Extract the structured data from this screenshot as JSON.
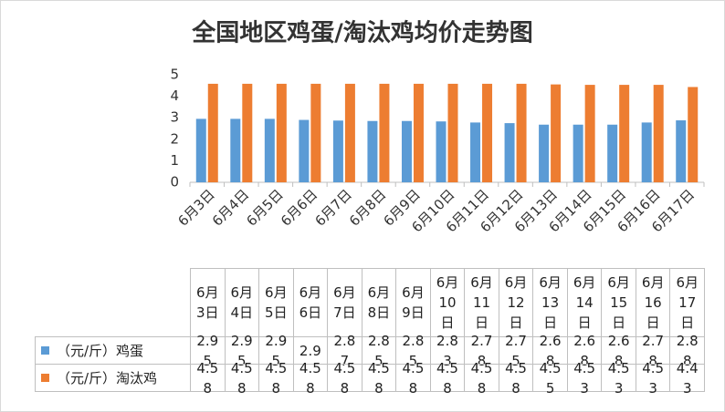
{
  "chart_data": {
    "type": "bar",
    "title": "全国地区鸡蛋/淘汰鸡均价走势图",
    "categories": [
      "6月3日",
      "6月4日",
      "6月5日",
      "6月6日",
      "6月7日",
      "6月8日",
      "6月9日",
      "6月10日",
      "6月11日",
      "6月12日",
      "6月13日",
      "6月14日",
      "6月15日",
      "6月16日",
      "6月17日"
    ],
    "series": [
      {
        "name": "（元/斤）鸡蛋",
        "color": "#5b9bd5",
        "values": [
          2.95,
          2.95,
          2.95,
          2.9,
          2.87,
          2.85,
          2.85,
          2.83,
          2.78,
          2.75,
          2.68,
          2.68,
          2.68,
          2.78,
          2.88
        ]
      },
      {
        "name": "（元/斤）淘汰鸡",
        "color": "#ed7d31",
        "values": [
          4.58,
          4.58,
          4.58,
          4.58,
          4.58,
          4.58,
          4.58,
          4.58,
          4.58,
          4.58,
          4.55,
          4.53,
          4.53,
          4.53,
          4.43
        ]
      }
    ],
    "ylim": [
      0,
      5
    ],
    "yticks": [
      0,
      1,
      2,
      3,
      4,
      5
    ]
  }
}
